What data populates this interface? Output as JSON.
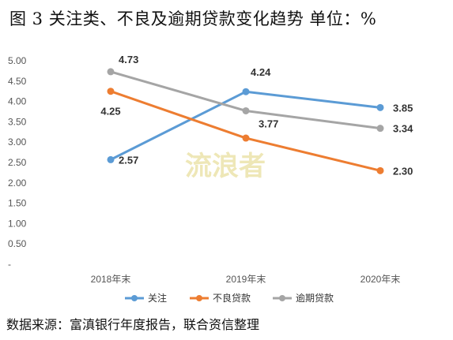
{
  "title": "图 3    关注类、不良及逾期贷款变化趋势 单位：%",
  "source": "数据来源：富滇银行年度报告，联合资信整理",
  "watermark": "流浪者",
  "chart_data": {
    "type": "line",
    "title": "",
    "xlabel": "",
    "ylabel": "",
    "categories": [
      "2018年末",
      "2019年末",
      "2020年末"
    ],
    "ylim": [
      0,
      5
    ],
    "yticks": [
      "5.00",
      "4.50",
      "4.00",
      "3.50",
      "3.00",
      "2.50",
      "2.00",
      "1.50",
      "1.00",
      "0.50",
      "-"
    ],
    "grid": false,
    "legend_position": "bottom",
    "series": [
      {
        "name": "关注",
        "values": [
          2.57,
          4.24,
          3.85
        ],
        "color": "#5b9bd5",
        "labels": [
          "2.57",
          "4.24",
          "3.85"
        ]
      },
      {
        "name": "不良贷款",
        "values": [
          4.25,
          3.1,
          2.3
        ],
        "color": "#ed7d31",
        "labels": [
          "4.25",
          "",
          "2.30"
        ]
      },
      {
        "name": "逾期贷款",
        "values": [
          4.73,
          3.77,
          3.34
        ],
        "color": "#a5a5a5",
        "labels": [
          "4.73",
          "3.77",
          "3.34"
        ]
      }
    ]
  }
}
